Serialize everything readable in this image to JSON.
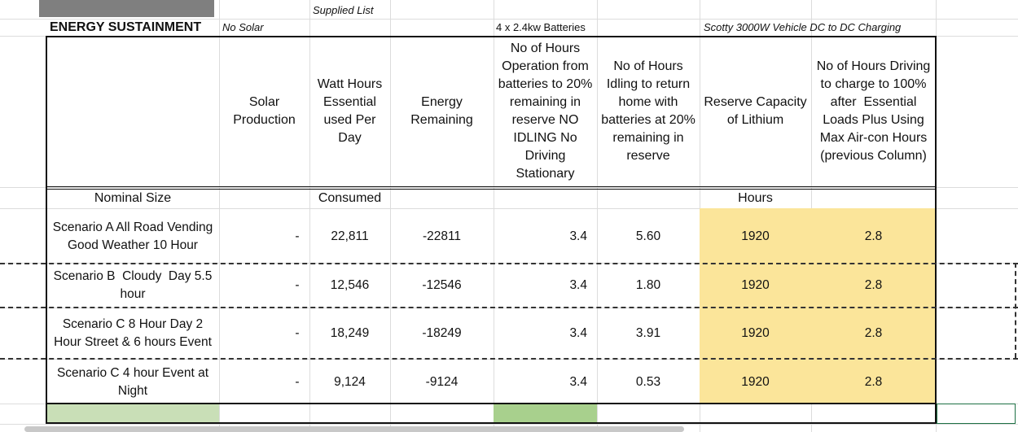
{
  "title_row": {
    "energy_sustainment": "ENERGY SUSTAINMENT",
    "no_solar": "No Solar",
    "batteries": "4 x 2.4kw Batteries",
    "scotty": "Scotty 3000W Vehicle DC to DC Charging",
    "supplied_list": "Supplied List"
  },
  "headers": {
    "solar": "Solar\nProduction",
    "watt_hours": "Watt Hours\nEssential\nused Per\nDay",
    "energy": "Energy\nRemaining",
    "hours_operation": "No of Hours\nOperation from\nbatteries to 20%\nremaining in\nreserve NO\nIDLING No\nDriving\nStationary",
    "hours_idling": "No of Hours\nIdling to return\nhome with\nbatteries at 20%\nremaining in\nreserve",
    "reserve": "Reserve Capacity\nof Lithium",
    "hours_driving": "No of Hours Driving\nto charge to 100%\nafter  Essential\nLoads Plus Using\nMax Air-con Hours\n(previous Column)"
  },
  "subheaders": {
    "nominal": "Nominal Size",
    "consumed": "Consumed",
    "hours": "Hours"
  },
  "rows": [
    {
      "name": "Scenario A All Road Vending\nGood Weather 10 Hour",
      "solar": "-",
      "watt": "22,811",
      "energy": "-22811",
      "op": "3.4",
      "idle": "5.60",
      "reserve": "1920",
      "drive": "2.8"
    },
    {
      "name": "Scenario B  Cloudy  Day 5.5\nhour",
      "solar": "-",
      "watt": "12,546",
      "energy": "-12546",
      "op": "3.4",
      "idle": "1.80",
      "reserve": "1920",
      "drive": "2.8"
    },
    {
      "name": "Scenario C 8 Hour Day 2\nHour Street & 6 hours Event",
      "solar": "-",
      "watt": "18,249",
      "energy": "-18249",
      "op": "3.4",
      "idle": "3.91",
      "reserve": "1920",
      "drive": "2.8"
    },
    {
      "name": "Scenario C 4 hour Event at\nNight",
      "solar": "-",
      "watt": "9,124",
      "energy": "-9124",
      "op": "3.4",
      "idle": "0.53",
      "reserve": "1920",
      "drive": "2.8"
    }
  ],
  "colors": {
    "highlight_yellow": "#fbe59a",
    "green_light": "#c9dfb7",
    "green_mid": "#a8d08d",
    "header_gray": "#7f7f7f",
    "selection_green": "#1e7145"
  }
}
